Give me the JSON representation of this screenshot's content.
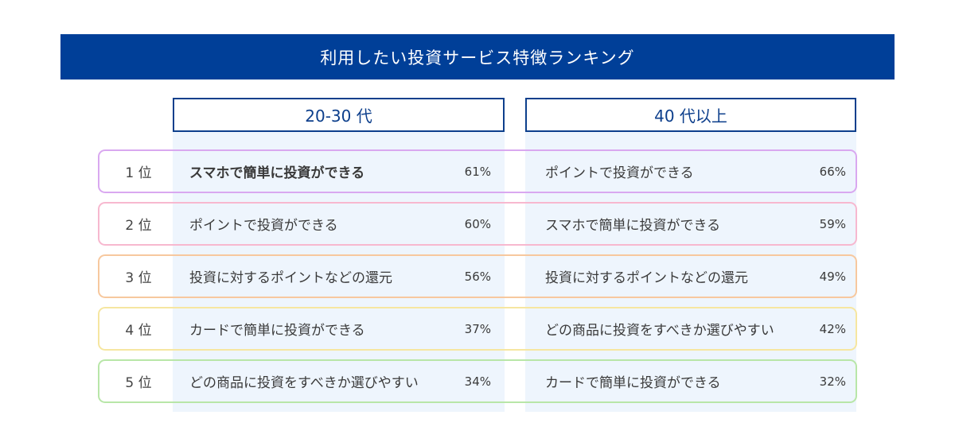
{
  "title": "利用したい投資サービス特徴ランキング",
  "chart_data": {
    "type": "table",
    "columns": [
      "20-30 代",
      "40 代以上"
    ],
    "rows": [
      {
        "rank": "1 位",
        "color": "#d9a8f0",
        "cells": [
          {
            "label": "スマホで簡単に投資ができる",
            "value": "61%",
            "bold": true
          },
          {
            "label": "ポイントで投資ができる",
            "value": "66%",
            "bold": false
          }
        ]
      },
      {
        "rank": "2 位",
        "color": "#f7b8cf",
        "cells": [
          {
            "label": "ポイントで投資ができる",
            "value": "60%",
            "bold": false
          },
          {
            "label": "スマホで簡単に投資ができる",
            "value": "59%",
            "bold": false
          }
        ]
      },
      {
        "rank": "3 位",
        "color": "#f7c89e",
        "cells": [
          {
            "label": "投資に対するポイントなどの還元",
            "value": "56%",
            "bold": false
          },
          {
            "label": "投資に対するポイントなどの還元",
            "value": "49%",
            "bold": false
          }
        ]
      },
      {
        "rank": "4 位",
        "color": "#f6e6a0",
        "cells": [
          {
            "label": "カードで簡単に投資ができる",
            "value": "37%",
            "bold": false
          },
          {
            "label": "どの商品に投資をすべきか選びやすい",
            "value": "42%",
            "bold": false
          }
        ]
      },
      {
        "rank": "5 位",
        "color": "#b8e6a8",
        "cells": [
          {
            "label": "どの商品に投資をすべきか選びやすい",
            "value": "34%",
            "bold": false
          },
          {
            "label": "カードで簡単に投資ができる",
            "value": "32%",
            "bold": false
          }
        ]
      }
    ]
  },
  "colors": {
    "title_bg": "#003f98",
    "header_border": "#0d3f8c",
    "column_bg": "#eef5fd"
  }
}
